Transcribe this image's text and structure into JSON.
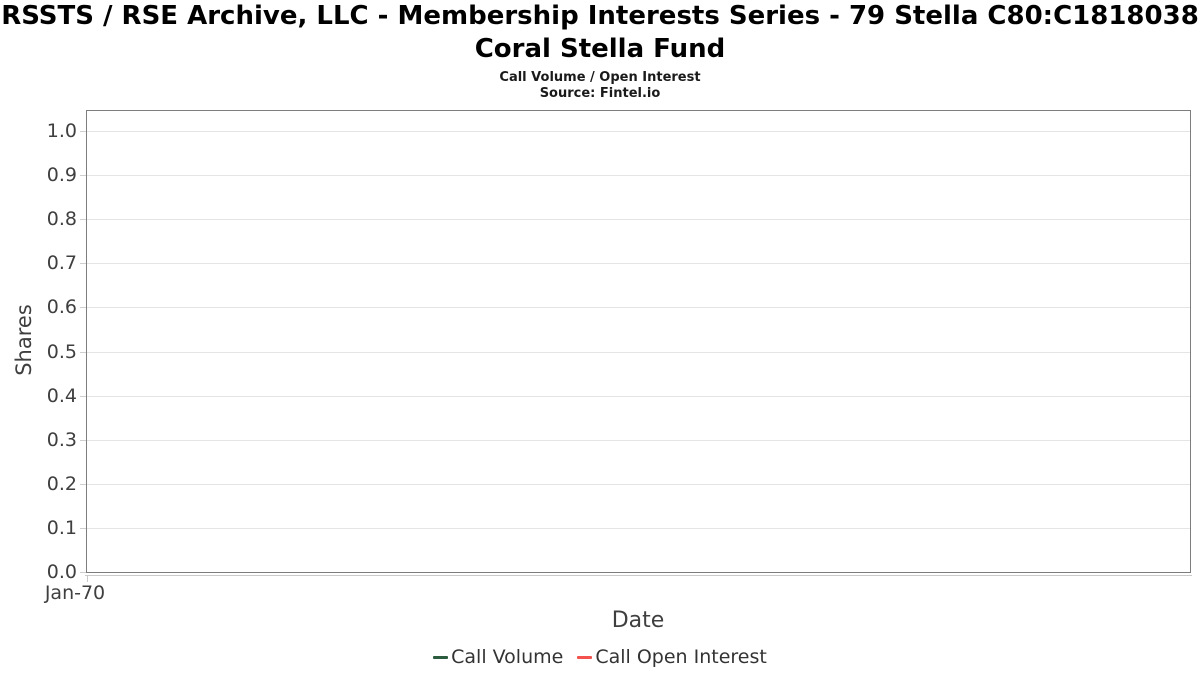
{
  "header": {
    "title_line1": "RSSTS / RSE Archive, LLC - Membership Interests Series - 79 Stella C80:C1818038",
    "title_line2": "Coral Stella Fund",
    "subtitle": "Call Volume / Open Interest",
    "source": "Source: Fintel.io"
  },
  "chart_data": {
    "type": "line",
    "title": "RSSTS / RSE Archive, LLC - Membership Interests Series - 79 Stella C80:C1818038 Coral Stella Fund",
    "subtitle": "Call Volume / Open Interest",
    "source": "Source: Fintel.io",
    "xlabel": "Date",
    "ylabel": "Shares",
    "ylim": [
      0.0,
      1.0
    ],
    "yticks": [
      0.0,
      0.1,
      0.2,
      0.3,
      0.4,
      0.5,
      0.6,
      0.7,
      0.8,
      0.9,
      1.0
    ],
    "xticks": [
      "Jan-70"
    ],
    "grid": true,
    "legend_position": "bottom",
    "series": [
      {
        "name": "Call Volume",
        "color": "#2b5c3d",
        "x": [],
        "values": []
      },
      {
        "name": "Call Open Interest",
        "color": "#f4524e",
        "x": [],
        "values": []
      }
    ],
    "colors": {
      "plot_border": "#7d7d7d",
      "gridline": "#e5e5e5",
      "tick": "#c9c9c9",
      "text": "#3f3f3f"
    }
  }
}
